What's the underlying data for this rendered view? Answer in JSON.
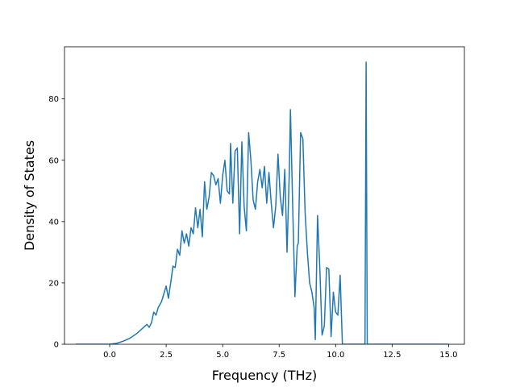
{
  "chart_data": {
    "type": "line",
    "title": "",
    "xlabel": "Frequency (THz)",
    "ylabel": "Density of States",
    "xlim": [
      -2.0,
      15.7
    ],
    "ylim": [
      0,
      97
    ],
    "x_ticks": [
      0.0,
      2.5,
      5.0,
      7.5,
      10.0,
      12.5,
      15.0
    ],
    "x_tick_labels": [
      "0.0",
      "2.5",
      "5.0",
      "7.5",
      "10.0",
      "12.5",
      "15.0"
    ],
    "y_ticks": [
      0,
      20,
      40,
      60,
      80
    ],
    "y_tick_labels": [
      "0",
      "20",
      "40",
      "60",
      "80"
    ],
    "grid": false,
    "legend": "none",
    "series": [
      {
        "color": "#1f77b4",
        "points": [
          [
            -1.5,
            0
          ],
          [
            0.0,
            0
          ],
          [
            0.3,
            0.3
          ],
          [
            0.6,
            1.0
          ],
          [
            0.9,
            2.0
          ],
          [
            1.2,
            3.5
          ],
          [
            1.5,
            5.5
          ],
          [
            1.65,
            6.5
          ],
          [
            1.75,
            5.5
          ],
          [
            1.85,
            7.0
          ],
          [
            1.95,
            10.5
          ],
          [
            2.05,
            9.5
          ],
          [
            2.15,
            12.0
          ],
          [
            2.3,
            14.0
          ],
          [
            2.4,
            16.5
          ],
          [
            2.5,
            19.0
          ],
          [
            2.6,
            15.0
          ],
          [
            2.7,
            20.0
          ],
          [
            2.8,
            25.5
          ],
          [
            2.9,
            25.0
          ],
          [
            3.0,
            31.0
          ],
          [
            3.1,
            29.0
          ],
          [
            3.2,
            37.0
          ],
          [
            3.3,
            33.0
          ],
          [
            3.4,
            36.0
          ],
          [
            3.5,
            32.0
          ],
          [
            3.6,
            38.0
          ],
          [
            3.7,
            36.0
          ],
          [
            3.8,
            44.5
          ],
          [
            3.9,
            38.0
          ],
          [
            4.0,
            44.0
          ],
          [
            4.1,
            35.0
          ],
          [
            4.2,
            53.0
          ],
          [
            4.3,
            44.0
          ],
          [
            4.4,
            48.0
          ],
          [
            4.5,
            56.0
          ],
          [
            4.6,
            55.0
          ],
          [
            4.7,
            52.0
          ],
          [
            4.8,
            54.0
          ],
          [
            4.9,
            46.0
          ],
          [
            5.0,
            55.0
          ],
          [
            5.1,
            60.0
          ],
          [
            5.2,
            50.0
          ],
          [
            5.3,
            49.0
          ],
          [
            5.35,
            65.5
          ],
          [
            5.45,
            46.0
          ],
          [
            5.55,
            63.0
          ],
          [
            5.65,
            64.0
          ],
          [
            5.75,
            36.0
          ],
          [
            5.85,
            66.0
          ],
          [
            5.95,
            45.0
          ],
          [
            6.05,
            37.0
          ],
          [
            6.15,
            69.0
          ],
          [
            6.25,
            60.0
          ],
          [
            6.35,
            47.0
          ],
          [
            6.45,
            44.0
          ],
          [
            6.55,
            53.0
          ],
          [
            6.65,
            57.0
          ],
          [
            6.75,
            51.0
          ],
          [
            6.85,
            58.0
          ],
          [
            6.95,
            46.0
          ],
          [
            7.05,
            56.0
          ],
          [
            7.15,
            46.0
          ],
          [
            7.25,
            38.0
          ],
          [
            7.35,
            45.0
          ],
          [
            7.45,
            62.0
          ],
          [
            7.55,
            48.0
          ],
          [
            7.65,
            42.0
          ],
          [
            7.75,
            57.0
          ],
          [
            7.85,
            30.0
          ],
          [
            7.95,
            56.0
          ],
          [
            8.0,
            76.5
          ],
          [
            8.1,
            45.0
          ],
          [
            8.2,
            15.5
          ],
          [
            8.3,
            32.0
          ],
          [
            8.35,
            33.0
          ],
          [
            8.45,
            69.0
          ],
          [
            8.55,
            67.0
          ],
          [
            8.65,
            43.0
          ],
          [
            8.75,
            30.0
          ],
          [
            8.85,
            20.0
          ],
          [
            8.95,
            17.0
          ],
          [
            9.05,
            12.0
          ],
          [
            9.1,
            1.5
          ],
          [
            9.2,
            42.0
          ],
          [
            9.3,
            25.0
          ],
          [
            9.4,
            3.0
          ],
          [
            9.5,
            6.0
          ],
          [
            9.6,
            25.0
          ],
          [
            9.7,
            24.5
          ],
          [
            9.8,
            2.5
          ],
          [
            9.9,
            17.0
          ],
          [
            10.0,
            10.5
          ],
          [
            10.1,
            9.5
          ],
          [
            10.2,
            22.5
          ],
          [
            10.3,
            0
          ],
          [
            11.3,
            0
          ],
          [
            11.35,
            92.0
          ],
          [
            11.4,
            0
          ],
          [
            15.0,
            0
          ]
        ]
      }
    ]
  }
}
